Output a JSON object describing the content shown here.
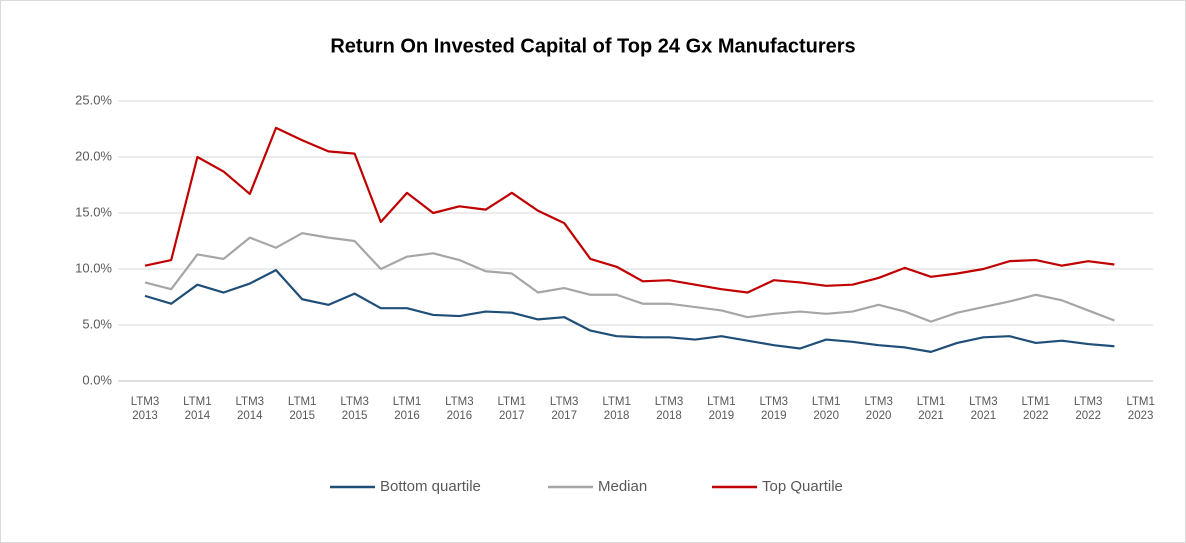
{
  "chart_data": {
    "type": "line",
    "title": "Return On Invested Capital of Top 24 Gx Manufacturers",
    "categories": [
      "LTM3 2013",
      null,
      "LTM1 2014",
      null,
      "LTM3 2014",
      null,
      "LTM1 2015",
      null,
      "LTM3 2015",
      null,
      "LTM1 2016",
      null,
      "LTM3 2016",
      null,
      "LTM1 2017",
      null,
      "LTM3 2017",
      null,
      "LTM1 2018",
      null,
      "LTM3 2018",
      null,
      "LTM1 2019",
      null,
      "LTM3 2019",
      null,
      "LTM1 2020",
      null,
      "LTM3 2020",
      null,
      "LTM1 2021",
      null,
      "LTM3 2021",
      null,
      "LTM1 2022",
      null,
      "LTM3 2022",
      null,
      "LTM1 2023"
    ],
    "series": [
      {
        "name": "Bottom quartile",
        "color": "#1f4e79",
        "values": [
          7.6,
          6.9,
          8.6,
          7.9,
          8.7,
          9.9,
          7.3,
          6.8,
          7.8,
          6.5,
          6.5,
          5.9,
          5.8,
          6.2,
          6.1,
          5.5,
          5.7,
          4.5,
          4.0,
          3.9,
          3.9,
          3.7,
          4.0,
          3.6,
          3.2,
          2.9,
          3.7,
          3.5,
          3.2,
          3.0,
          2.6,
          3.4,
          3.9,
          4.0,
          3.4,
          3.6,
          3.3,
          3.1,
          null
        ]
      },
      {
        "name": "Median",
        "color": "#a6a6a6",
        "values": [
          8.8,
          8.2,
          11.3,
          10.9,
          12.8,
          11.9,
          13.2,
          12.8,
          12.5,
          10.0,
          11.1,
          11.4,
          10.8,
          9.8,
          9.6,
          7.9,
          8.3,
          7.7,
          7.7,
          6.9,
          6.9,
          6.6,
          6.3,
          5.7,
          6.0,
          6.2,
          6.0,
          6.2,
          6.8,
          6.2,
          5.3,
          6.1,
          6.6,
          7.1,
          7.7,
          7.2,
          6.3,
          5.4,
          null
        ]
      },
      {
        "name": "Top Quartile",
        "color": "#c00000",
        "values": [
          10.3,
          10.8,
          20.0,
          18.7,
          16.7,
          22.6,
          21.5,
          20.5,
          20.3,
          14.2,
          16.8,
          15.0,
          15.6,
          15.3,
          16.8,
          15.2,
          14.1,
          10.9,
          10.2,
          8.9,
          9.0,
          8.6,
          8.2,
          7.9,
          9.0,
          8.8,
          8.5,
          8.6,
          9.2,
          10.1,
          9.3,
          9.6,
          10.0,
          10.7,
          10.8,
          10.3,
          10.7,
          10.4,
          null
        ]
      }
    ],
    "ylim": [
      0,
      25
    ],
    "yticks": [
      {
        "value": 0,
        "label": "0.0%"
      },
      {
        "value": 5,
        "label": "5.0%"
      },
      {
        "value": 10,
        "label": "10.0%"
      },
      {
        "value": 15,
        "label": "15.0%"
      },
      {
        "value": 20,
        "label": "20.0%"
      },
      {
        "value": 25,
        "label": "25.0%"
      }
    ],
    "grid": true,
    "legend": "bottom"
  }
}
